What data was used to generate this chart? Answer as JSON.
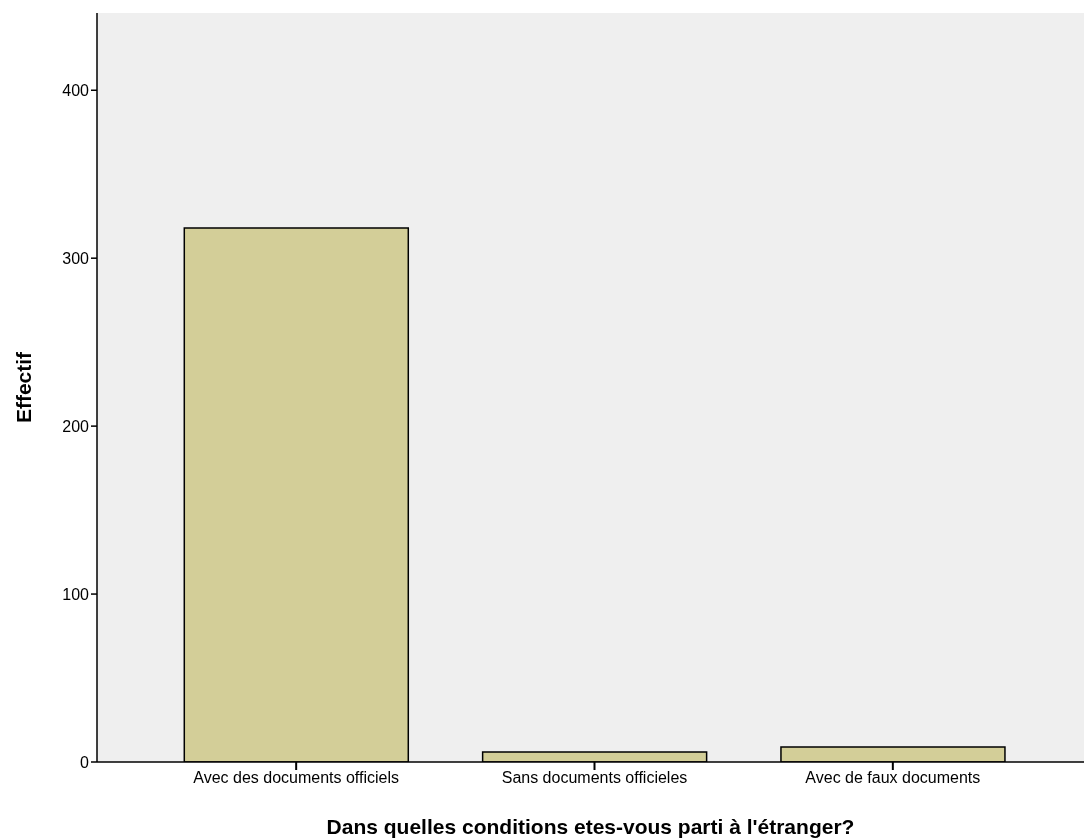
{
  "chart_data": {
    "type": "bar",
    "xlabel": "Dans quelles conditions etes-vous parti à l'étranger?",
    "ylabel": "Effectif",
    "categories": [
      "Avec des documents officiels",
      "Sans documents officieles",
      "Avec de faux documents"
    ],
    "values": [
      318,
      6,
      9
    ],
    "color": "#d3ce98",
    "ylim": [
      0,
      446
    ],
    "yticks": [
      0,
      100,
      200,
      300,
      400
    ],
    "grid": false
  }
}
